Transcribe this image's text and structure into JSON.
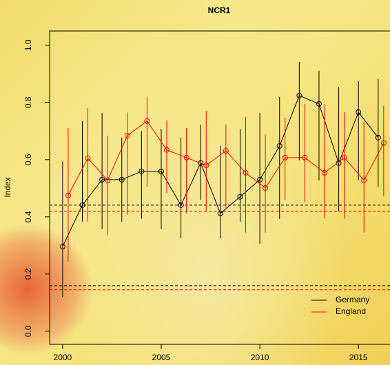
{
  "chart_data": {
    "type": "errorline",
    "title": "NCR1",
    "y_label": "Index",
    "xlim": [
      1999.34,
      2016.6
    ],
    "ylim": [
      -0.046,
      1.05
    ],
    "xticks": [
      2000,
      2005,
      2010,
      2015
    ],
    "yticks": [
      {
        "value": 0,
        "label": "0.0"
      },
      0.2,
      0.4,
      0.6,
      0.8,
      {
        "value": 1,
        "label": "1.0"
      }
    ],
    "legend": "bottom-right",
    "series": [
      {
        "name": "Germany",
        "color": "#000000",
        "x": [
          2000,
          2001,
          2002,
          2003,
          2004,
          2005,
          2006,
          2007,
          2008,
          2009,
          2010,
          2011,
          2012,
          2013,
          2014,
          2015,
          2016
        ],
        "values": [
          0.296,
          0.441,
          0.53,
          0.53,
          0.559,
          0.559,
          0.441,
          0.588,
          0.412,
          0.47,
          0.53,
          0.648,
          0.824,
          0.795,
          0.588,
          0.766,
          0.677
        ],
        "lower": [
          0.12,
          0.383,
          0.357,
          0.383,
          0.393,
          0.357,
          0.325,
          0.46,
          0.325,
          0.383,
          0.306,
          0.393,
          0.598,
          0.528,
          0.419,
          0.528,
          0.504
        ],
        "upper": [
          0.593,
          0.735,
          0.764,
          0.677,
          0.7,
          0.708,
          0.677,
          0.723,
          0.648,
          0.708,
          0.764,
          0.819,
          0.942,
          0.911,
          0.853,
          0.875,
          0.882
        ],
        "hlines": [
          0.441,
          0.159
        ]
      },
      {
        "name": "England",
        "color": "#ff0000",
        "x": [
          2000.28,
          2001.28,
          2002.28,
          2003.28,
          2004.28,
          2005.28,
          2006.28,
          2007.28,
          2008.28,
          2009.28,
          2010.28,
          2011.28,
          2012.28,
          2013.28,
          2014.28,
          2015.28,
          2016.28
        ],
        "values": [
          0.475,
          0.605,
          0.528,
          0.684,
          0.735,
          0.634,
          0.607,
          0.58,
          0.631,
          0.554,
          0.501,
          0.607,
          0.607,
          0.554,
          0.607,
          0.528,
          0.658
        ],
        "lower": [
          0.243,
          0.383,
          0.337,
          0.407,
          0.504,
          0.484,
          0.412,
          0.421,
          0.426,
          0.345,
          0.345,
          0.46,
          0.451,
          0.395,
          0.393,
          0.345,
          0.472
        ],
        "upper": [
          0.711,
          0.78,
          0.684,
          0.764,
          0.819,
          0.737,
          0.711,
          0.771,
          0.723,
          0.749,
          0.687,
          0.747,
          0.795,
          0.793,
          0.766,
          0.733,
          0.788
        ],
        "hlines": [
          0.419,
          0.145
        ]
      }
    ]
  }
}
